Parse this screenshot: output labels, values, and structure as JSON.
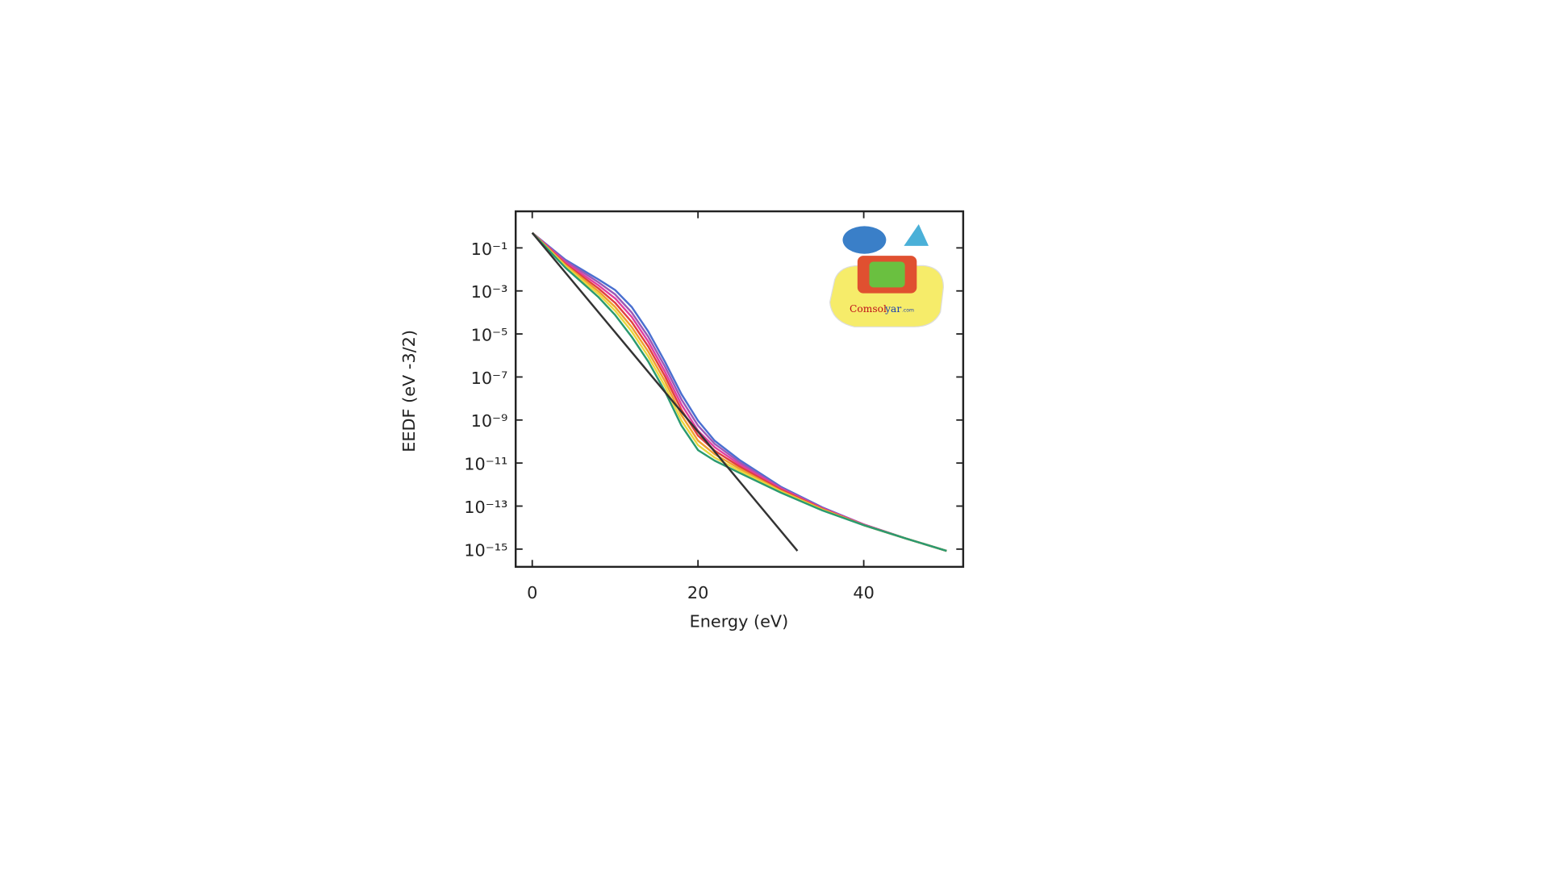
{
  "chart_data": {
    "type": "line",
    "xlabel": "Energy (eV)",
    "ylabel": "EEDF (eV -3/2)",
    "log_y": true,
    "xlim": [
      -2,
      52
    ],
    "ylim": [
      1.5e-16,
      5
    ],
    "xticks": [
      0,
      20,
      40
    ],
    "yticks": [
      {
        "value": 0.1,
        "label": "10⁻¹"
      },
      {
        "value": 0.001,
        "label": "10⁻³"
      },
      {
        "value": 1e-05,
        "label": "10⁻⁵"
      },
      {
        "value": 1e-07,
        "label": "10⁻⁷"
      },
      {
        "value": 1e-09,
        "label": "10⁻⁹"
      },
      {
        "value": 1e-11,
        "label": "10⁻¹¹"
      },
      {
        "value": 1e-13,
        "label": "10⁻¹³"
      },
      {
        "value": 1e-15,
        "label": "10⁻¹⁵"
      }
    ],
    "x": [
      0,
      4,
      8,
      10,
      12,
      14,
      16,
      18,
      20,
      22,
      25,
      30,
      35,
      40,
      45,
      50
    ],
    "series": [
      {
        "color": "#4a6fd0",
        "values": [
          0.5,
          0.028,
          0.0034,
          0.0011,
          0.00018,
          1.3e-05,
          5.2e-07,
          1.6e-08,
          9.3e-10,
          1.1e-10,
          1.4e-11,
          7.9e-13,
          8.7e-14,
          1.4e-14,
          3.2e-15,
          8.3e-16
        ]
      },
      {
        "color": "#9b59b6",
        "values": [
          0.5,
          0.025,
          0.0025,
          0.00069,
          0.0001,
          7.4e-06,
          3.1e-07,
          9.1e-09,
          5.5e-10,
          7.9e-11,
          1.1e-11,
          7.1e-13,
          8.3e-14,
          1.4e-14,
          3.2e-15,
          8.3e-16
        ]
      },
      {
        "color": "#e040a0",
        "values": [
          0.5,
          0.021,
          0.0018,
          0.00045,
          6.2e-05,
          4.4e-06,
          1.8e-07,
          5.2e-09,
          3.2e-10,
          5.5e-11,
          8.7e-12,
          6.5e-13,
          7.8e-14,
          1.4e-14,
          3.2e-15,
          8.3e-16
        ]
      },
      {
        "color": "#e04040",
        "values": [
          0.5,
          0.018,
          0.0013,
          0.00028,
          3.6e-05,
          2.6e-06,
          1.1e-07,
          3e-09,
          1.9e-10,
          3.8e-11,
          6.9e-12,
          5.8e-13,
          7.4e-14,
          1.3e-14,
          3.2e-15,
          8.3e-16
        ]
      },
      {
        "color": "#f0a030",
        "values": [
          0.5,
          0.016,
          0.00095,
          0.00018,
          2.1e-05,
          1.5e-06,
          6.5e-08,
          1.7e-09,
          1.1e-10,
          2.6e-11,
          5.5e-12,
          5.1e-13,
          7.1e-14,
          1.3e-14,
          3.2e-15,
          8.3e-16
        ]
      },
      {
        "color": "#e8d840",
        "values": [
          0.5,
          0.014,
          0.00071,
          0.00012,
          1.3e-05,
          8.9e-07,
          3.8e-08,
          9.5e-10,
          6.8e-11,
          1.8e-11,
          4.4e-12,
          4.7e-13,
          6.6e-14,
          1.3e-14,
          3.2e-15,
          8.3e-16
        ]
      },
      {
        "color": "#2a9a70",
        "values": [
          0.5,
          0.012,
          0.00051,
          7.6e-05,
          7.4e-06,
          5.2e-07,
          2.2e-08,
          5.5e-10,
          4e-11,
          1.3e-11,
          3.5e-12,
          4.2e-13,
          6.3e-14,
          1.3e-14,
          3.2e-15,
          8.3e-16
        ]
      },
      {
        "color": "#333333",
        "x": [
          0,
          32
        ],
        "values": [
          0.5,
          8.3e-16
        ]
      }
    ],
    "logo": {
      "brand": "Comsol",
      "suffix": "yar",
      "domain": ".com"
    }
  }
}
